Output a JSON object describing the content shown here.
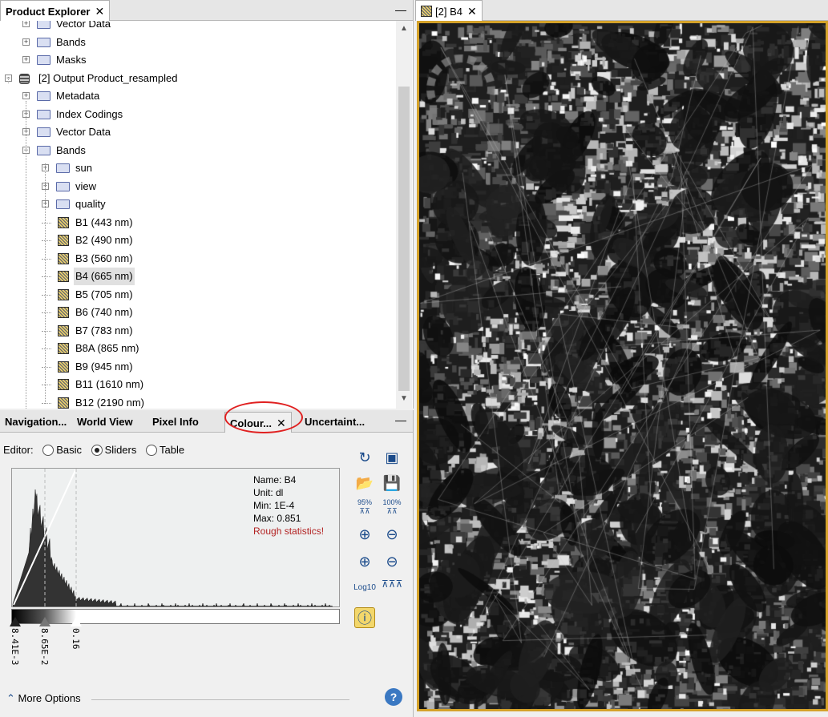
{
  "product_explorer": {
    "tab_title": "Product Explorer",
    "tree": [
      {
        "label": "Vector Data",
        "indent": 1,
        "icon": "folder",
        "expander": "+",
        "partial": true
      },
      {
        "label": "Bands",
        "indent": 1,
        "icon": "folder",
        "expander": "+"
      },
      {
        "label": "Masks",
        "indent": 1,
        "icon": "folder",
        "expander": "+"
      },
      {
        "label": "[2] Output Product_resampled",
        "indent": 0,
        "icon": "product",
        "expander": "-"
      },
      {
        "label": "Metadata",
        "indent": 1,
        "icon": "folder",
        "expander": "+"
      },
      {
        "label": "Index Codings",
        "indent": 1,
        "icon": "folder",
        "expander": "+"
      },
      {
        "label": "Vector Data",
        "indent": 1,
        "icon": "folder",
        "expander": "+"
      },
      {
        "label": "Bands",
        "indent": 1,
        "icon": "folder-open",
        "expander": "-"
      },
      {
        "label": "sun",
        "indent": 2,
        "icon": "folder",
        "expander": "+"
      },
      {
        "label": "view",
        "indent": 2,
        "icon": "folder",
        "expander": "+"
      },
      {
        "label": "quality",
        "indent": 2,
        "icon": "folder",
        "expander": "+"
      },
      {
        "label": "B1 (443 nm)",
        "indent": 2,
        "icon": "band"
      },
      {
        "label": "B2 (490 nm)",
        "indent": 2,
        "icon": "band"
      },
      {
        "label": "B3 (560 nm)",
        "indent": 2,
        "icon": "band"
      },
      {
        "label": "B4 (665 nm)",
        "indent": 2,
        "icon": "band",
        "selected": true
      },
      {
        "label": "B5 (705 nm)",
        "indent": 2,
        "icon": "band"
      },
      {
        "label": "B6 (740 nm)",
        "indent": 2,
        "icon": "band"
      },
      {
        "label": "B7 (783 nm)",
        "indent": 2,
        "icon": "band"
      },
      {
        "label": "B8A (865 nm)",
        "indent": 2,
        "icon": "band"
      },
      {
        "label": "B9 (945 nm)",
        "indent": 2,
        "icon": "band"
      },
      {
        "label": "B11 (1610 nm)",
        "indent": 2,
        "icon": "band"
      },
      {
        "label": "B12 (2190 nm)",
        "indent": 2,
        "icon": "band"
      }
    ]
  },
  "tool_tabs": {
    "navigation": "Navigation...",
    "world_view": "World View",
    "pixel_info": "Pixel Info",
    "colour": "Colour...",
    "uncertainty": "Uncertaint..."
  },
  "colour_manipulation": {
    "editor_label": "Editor:",
    "modes": [
      "Basic",
      "Sliders",
      "Table"
    ],
    "selected_mode": "Sliders",
    "stats": {
      "name": "Name: B4",
      "unit": "Unit: dl",
      "min": "Min: 1E-4",
      "max": "Max: 0.851",
      "warning": "Rough statistics!"
    },
    "slider_values": [
      "8.41E-3",
      "8.65E-2",
      "0.16"
    ],
    "tool_labels": {
      "pct95": "95%",
      "pct100": "100%",
      "log": "Log10"
    },
    "more_options": "More Options"
  },
  "image_view": {
    "tab_title": "[2] B4"
  },
  "colors": {
    "highlight_circle": "#e02020",
    "frame_border": "#d4a22a",
    "warning_text": "#b22222"
  }
}
